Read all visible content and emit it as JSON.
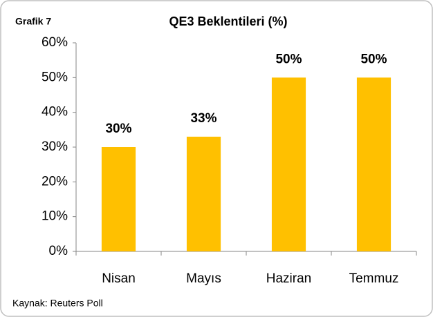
{
  "chart_data": {
    "type": "bar",
    "label": "Grafik 7",
    "title": "QE3 Beklentileri (%)",
    "categories": [
      "Nisan",
      "Mayıs",
      "Haziran",
      "Temmuz"
    ],
    "values": [
      30,
      33,
      50,
      50
    ],
    "value_labels": [
      "30%",
      "33%",
      "50%",
      "50%"
    ],
    "color": "#ffc000",
    "ylim": [
      0,
      60
    ],
    "yticks": [
      {
        "value": 0,
        "label": "0%"
      },
      {
        "value": 10,
        "label": "10%"
      },
      {
        "value": 20,
        "label": "20%"
      },
      {
        "value": 30,
        "label": "30%"
      },
      {
        "value": 40,
        "label": "40%"
      },
      {
        "value": 50,
        "label": "50%"
      },
      {
        "value": 60,
        "label": "60%"
      }
    ],
    "grid": false,
    "source": "Kaynak: Reuters Poll"
  }
}
